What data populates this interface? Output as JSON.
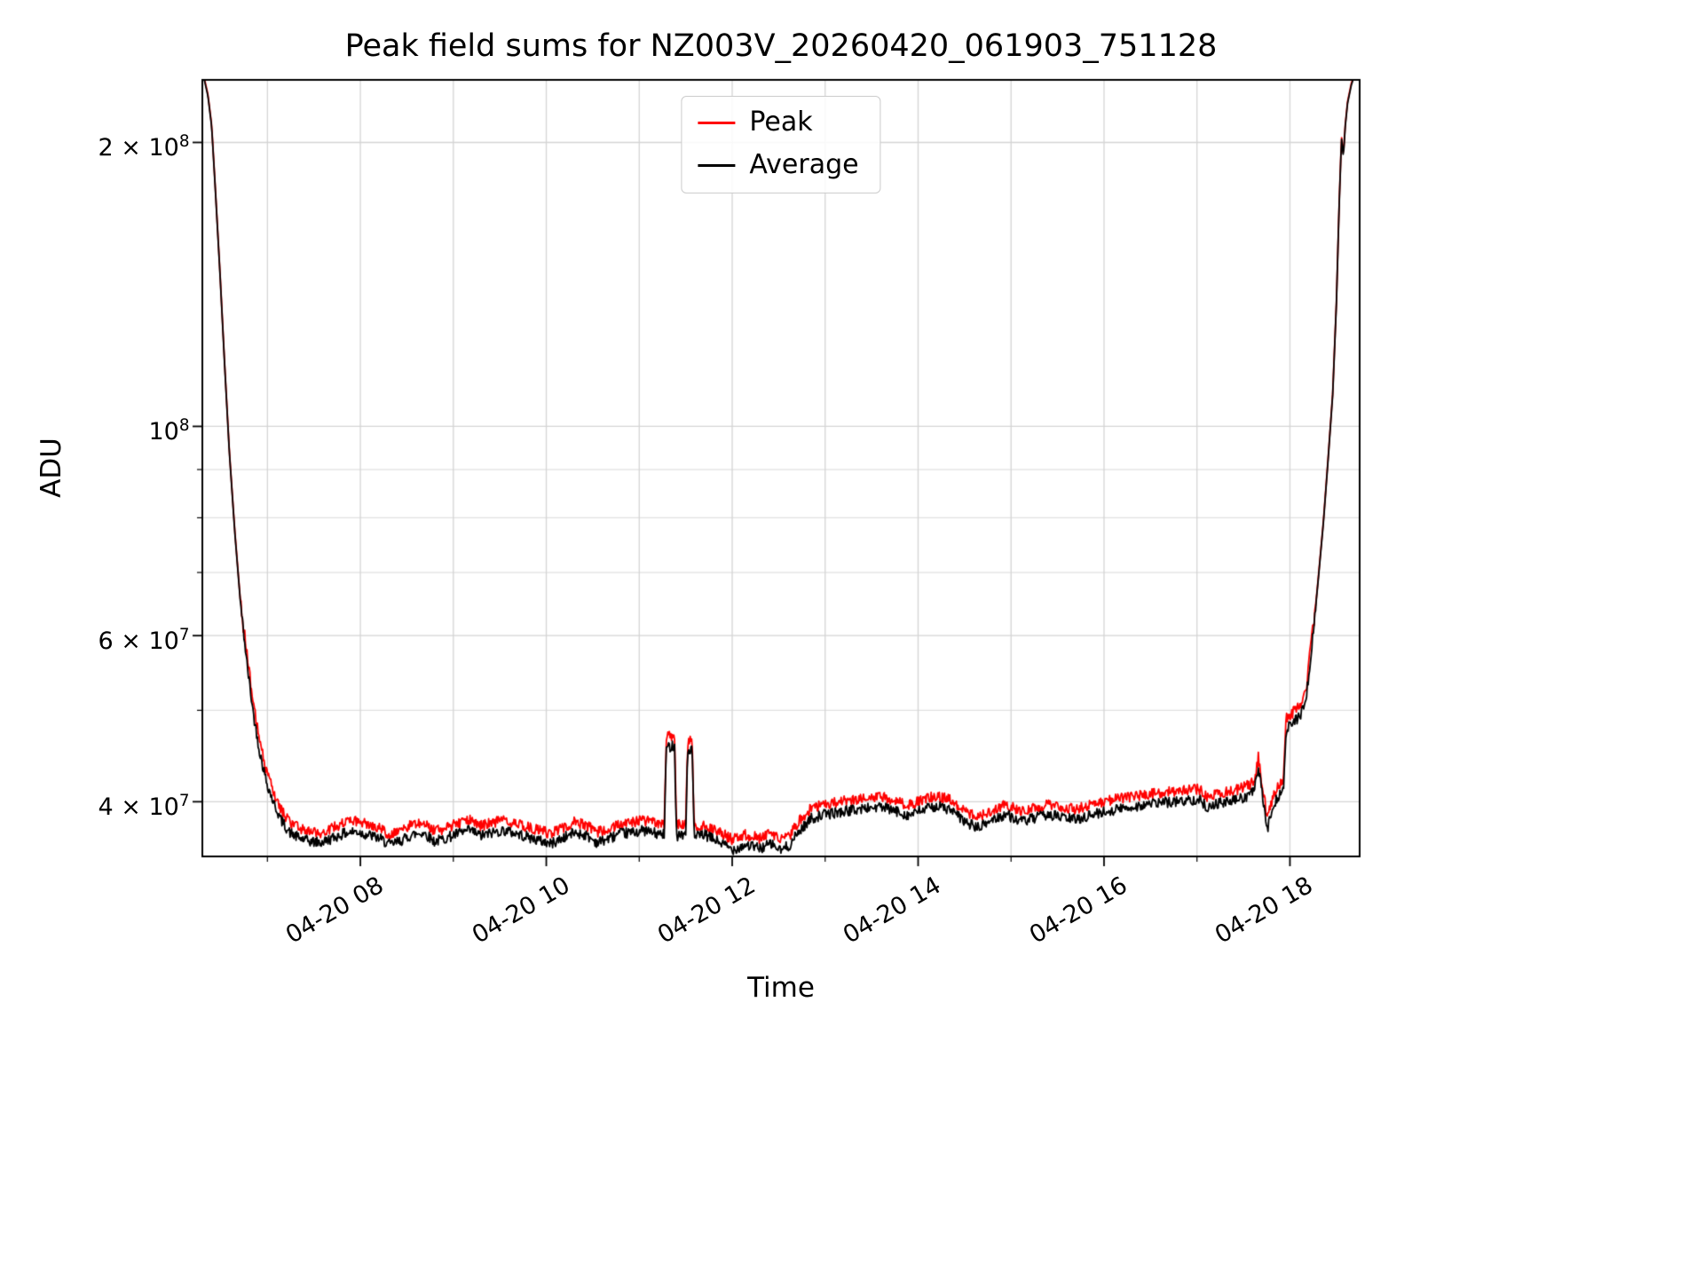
{
  "figure": {
    "title": "Peak field sums for NZ003V_20260420_061903_751128",
    "xlabel": "Time",
    "ylabel": "ADU"
  },
  "legend": [
    {
      "label": "Peak",
      "color": "#ff0000"
    },
    {
      "label": "Average",
      "color": "#000000"
    }
  ],
  "chart_data": {
    "type": "line",
    "title": "Peak field sums for NZ003V_20260420_061903_751128",
    "xlabel": "Time",
    "ylabel": "ADU",
    "y_scale": "log",
    "x_unit": "hours on 2026-04-20",
    "x_range_hours": [
      6.3,
      18.75
    ],
    "y_range": [
      35000000.0,
      233000000.0
    ],
    "x_ticks": [
      {
        "hour": 8,
        "label": "04-20 08"
      },
      {
        "hour": 10,
        "label": "04-20 10"
      },
      {
        "hour": 12,
        "label": "04-20 12"
      },
      {
        "hour": 14,
        "label": "04-20 14"
      },
      {
        "hour": 16,
        "label": "04-20 16"
      },
      {
        "hour": 18,
        "label": "04-20 18"
      }
    ],
    "x_tick_rotation_deg": 30,
    "x_minor_tick_hours": [
      7,
      9,
      11,
      13,
      15,
      17
    ],
    "x_grid_hours": [
      7,
      8,
      9,
      10,
      11,
      12,
      13,
      14,
      15,
      16,
      17,
      18
    ],
    "y_ticks": [
      {
        "v": 200000000.0,
        "mantissa": "2 × 10",
        "exp": "8"
      },
      {
        "v": 100000000.0,
        "mantissa": "10",
        "exp": "8"
      },
      {
        "v": 60000000.0,
        "mantissa": "6 × 10",
        "exp": "7"
      },
      {
        "v": 40000000.0,
        "mantissa": "4 × 10",
        "exp": "7"
      }
    ],
    "y_major_gridlines": [
      200000000.0,
      100000000.0,
      60000000.0,
      40000000.0
    ],
    "y_minor_gridlines": [
      90000000.0,
      80000000.0,
      70000000.0,
      50000000.0
    ],
    "colors": {
      "grid_major": "#d4d4d4",
      "grid_minor": "#e0e0e0",
      "frame": "#000000",
      "background": "#ffffff"
    },
    "noise": {
      "seed": 42,
      "amplitude_frac": 0.013,
      "applies_below": 65000000.0,
      "sample_step_hours": 0.008
    },
    "series": {
      "average": {
        "name": "Average",
        "color": "#000000",
        "keypoints": [
          [
            6.3,
            238000000.0
          ],
          [
            6.36,
            224000000.0
          ],
          [
            6.4,
            208000000.0
          ],
          [
            6.44,
            178000000.0
          ],
          [
            6.49,
            145000000.0
          ],
          [
            6.54,
            116000000.0
          ],
          [
            6.59,
            94000000.0
          ],
          [
            6.65,
            77000000.0
          ],
          [
            6.71,
            65000000.0
          ],
          [
            6.78,
            56000000.0
          ],
          [
            6.85,
            49500000.0
          ],
          [
            6.92,
            45000000.0
          ],
          [
            6.99,
            42000000.0
          ],
          [
            7.07,
            39800000.0
          ],
          [
            7.15,
            38200000.0
          ],
          [
            7.24,
            37100000.0
          ],
          [
            7.34,
            36600000.0
          ],
          [
            7.46,
            36300000.0
          ],
          [
            7.58,
            36200000.0
          ],
          [
            7.7,
            36600000.0
          ],
          [
            7.82,
            37000000.0
          ],
          [
            7.95,
            37200000.0
          ],
          [
            8.08,
            36900000.0
          ],
          [
            8.2,
            36600000.0
          ],
          [
            8.32,
            36000000.0
          ],
          [
            8.44,
            36400000.0
          ],
          [
            8.56,
            36900000.0
          ],
          [
            8.68,
            37100000.0
          ],
          [
            8.8,
            36300000.0
          ],
          [
            8.92,
            36600000.0
          ],
          [
            9.05,
            37000000.0
          ],
          [
            9.18,
            37300000.0
          ],
          [
            9.3,
            36800000.0
          ],
          [
            9.42,
            37100000.0
          ],
          [
            9.55,
            37300000.0
          ],
          [
            9.68,
            37000000.0
          ],
          [
            9.8,
            36700000.0
          ],
          [
            9.92,
            36400000.0
          ],
          [
            10.05,
            36100000.0
          ],
          [
            10.18,
            36600000.0
          ],
          [
            10.3,
            37100000.0
          ],
          [
            10.42,
            36900000.0
          ],
          [
            10.55,
            36200000.0
          ],
          [
            10.68,
            36600000.0
          ],
          [
            10.8,
            37000000.0
          ],
          [
            10.92,
            37100000.0
          ],
          [
            11.05,
            37300000.0
          ],
          [
            11.18,
            37000000.0
          ],
          [
            11.27,
            36900000.0
          ],
          [
            11.29,
            45600000.0
          ],
          [
            11.38,
            46000000.0
          ],
          [
            11.4,
            36800000.0
          ],
          [
            11.46,
            37000000.0
          ],
          [
            11.5,
            36800000.0
          ],
          [
            11.52,
            45200000.0
          ],
          [
            11.57,
            45600000.0
          ],
          [
            11.59,
            36700000.0
          ],
          [
            11.7,
            36900000.0
          ],
          [
            11.85,
            36300000.0
          ],
          [
            12.0,
            35600000.0
          ],
          [
            12.15,
            36000000.0
          ],
          [
            12.3,
            35700000.0
          ],
          [
            12.42,
            36100000.0
          ],
          [
            12.52,
            35500000.0
          ],
          [
            12.62,
            36000000.0
          ],
          [
            12.72,
            37200000.0
          ],
          [
            12.85,
            38400000.0
          ],
          [
            13.0,
            38800000.0
          ],
          [
            13.15,
            39000000.0
          ],
          [
            13.3,
            39200000.0
          ],
          [
            13.45,
            39400000.0
          ],
          [
            13.6,
            39500000.0
          ],
          [
            13.75,
            39100000.0
          ],
          [
            13.9,
            38700000.0
          ],
          [
            14.05,
            39200000.0
          ],
          [
            14.2,
            39600000.0
          ],
          [
            14.35,
            39200000.0
          ],
          [
            14.5,
            38100000.0
          ],
          [
            14.65,
            37500000.0
          ],
          [
            14.8,
            38300000.0
          ],
          [
            14.95,
            38800000.0
          ],
          [
            15.1,
            38100000.0
          ],
          [
            15.25,
            38400000.0
          ],
          [
            15.4,
            38800000.0
          ],
          [
            15.55,
            38500000.0
          ],
          [
            15.7,
            38300000.0
          ],
          [
            15.85,
            38700000.0
          ],
          [
            16.0,
            39000000.0
          ],
          [
            16.15,
            39300000.0
          ],
          [
            16.3,
            39500000.0
          ],
          [
            16.45,
            39700000.0
          ],
          [
            16.6,
            39900000.0
          ],
          [
            16.75,
            40000000.0
          ],
          [
            16.9,
            40100000.0
          ],
          [
            17.02,
            40300000.0
          ],
          [
            17.1,
            39500000.0
          ],
          [
            17.22,
            39800000.0
          ],
          [
            17.35,
            40000000.0
          ],
          [
            17.47,
            40300000.0
          ],
          [
            17.55,
            40600000.0
          ],
          [
            17.62,
            41200000.0
          ],
          [
            17.66,
            43500000.0
          ],
          [
            17.71,
            40200000.0
          ],
          [
            17.76,
            37400000.0
          ],
          [
            17.82,
            39600000.0
          ],
          [
            17.88,
            40600000.0
          ],
          [
            17.93,
            41000000.0
          ],
          [
            17.96,
            47800000.0
          ],
          [
            18.02,
            48400000.0
          ],
          [
            18.08,
            49000000.0
          ],
          [
            18.13,
            49800000.0
          ],
          [
            18.18,
            52000000.0
          ],
          [
            18.24,
            59000000.0
          ],
          [
            18.3,
            68000000.0
          ],
          [
            18.36,
            79000000.0
          ],
          [
            18.41,
            92000000.0
          ],
          [
            18.46,
            108000000.0
          ],
          [
            18.5,
            135000000.0
          ],
          [
            18.53,
            172000000.0
          ],
          [
            18.555,
            202000000.0
          ],
          [
            18.575,
            193000000.0
          ],
          [
            18.595,
            208000000.0
          ],
          [
            18.62,
            220000000.0
          ],
          [
            18.66,
            230000000.0
          ],
          [
            18.72,
            240000000.0
          ],
          [
            18.75,
            242000000.0
          ]
        ]
      },
      "peak": {
        "name": "Peak",
        "color": "#ff0000",
        "derived_from": "average",
        "threshold": 60000000.0,
        "factor_below_threshold": 1.025,
        "factor_above_threshold": 1.004
      }
    }
  }
}
